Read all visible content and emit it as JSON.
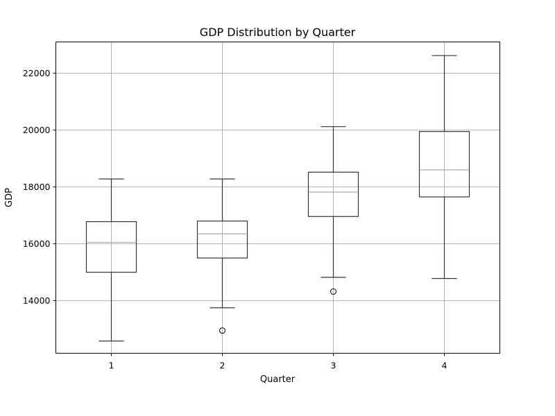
{
  "chart_data": {
    "type": "box",
    "title": "GDP Distribution by Quarter",
    "xlabel": "Quarter",
    "ylabel": "GDP",
    "categories": [
      "1",
      "2",
      "3",
      "4"
    ],
    "ylim": [
      12150,
      23100
    ],
    "yticks": [
      14000,
      16000,
      18000,
      20000,
      22000
    ],
    "ytick_labels": [
      "14000",
      "16000",
      "18000",
      "20000",
      "22000"
    ],
    "grid": true,
    "boxes": [
      {
        "category": "1",
        "whisker_low": 12580,
        "q1": 15000,
        "median": 16050,
        "q3": 16780,
        "whisker_high": 18280,
        "outliers": []
      },
      {
        "category": "2",
        "whisker_low": 13750,
        "q1": 15500,
        "median": 16350,
        "q3": 16800,
        "whisker_high": 18280,
        "outliers": [
          12950
        ]
      },
      {
        "category": "3",
        "whisker_low": 14820,
        "q1": 16960,
        "median": 17820,
        "q3": 18520,
        "whisker_high": 20120,
        "outliers": [
          14320
        ]
      },
      {
        "category": "4",
        "whisker_low": 14780,
        "q1": 17650,
        "median": 18600,
        "q3": 19950,
        "whisker_high": 22620,
        "outliers": []
      }
    ],
    "colors": {
      "box": "#333333",
      "median": "#aaaaaa",
      "grid": "#b0b0b0",
      "axes": "#000000"
    }
  }
}
